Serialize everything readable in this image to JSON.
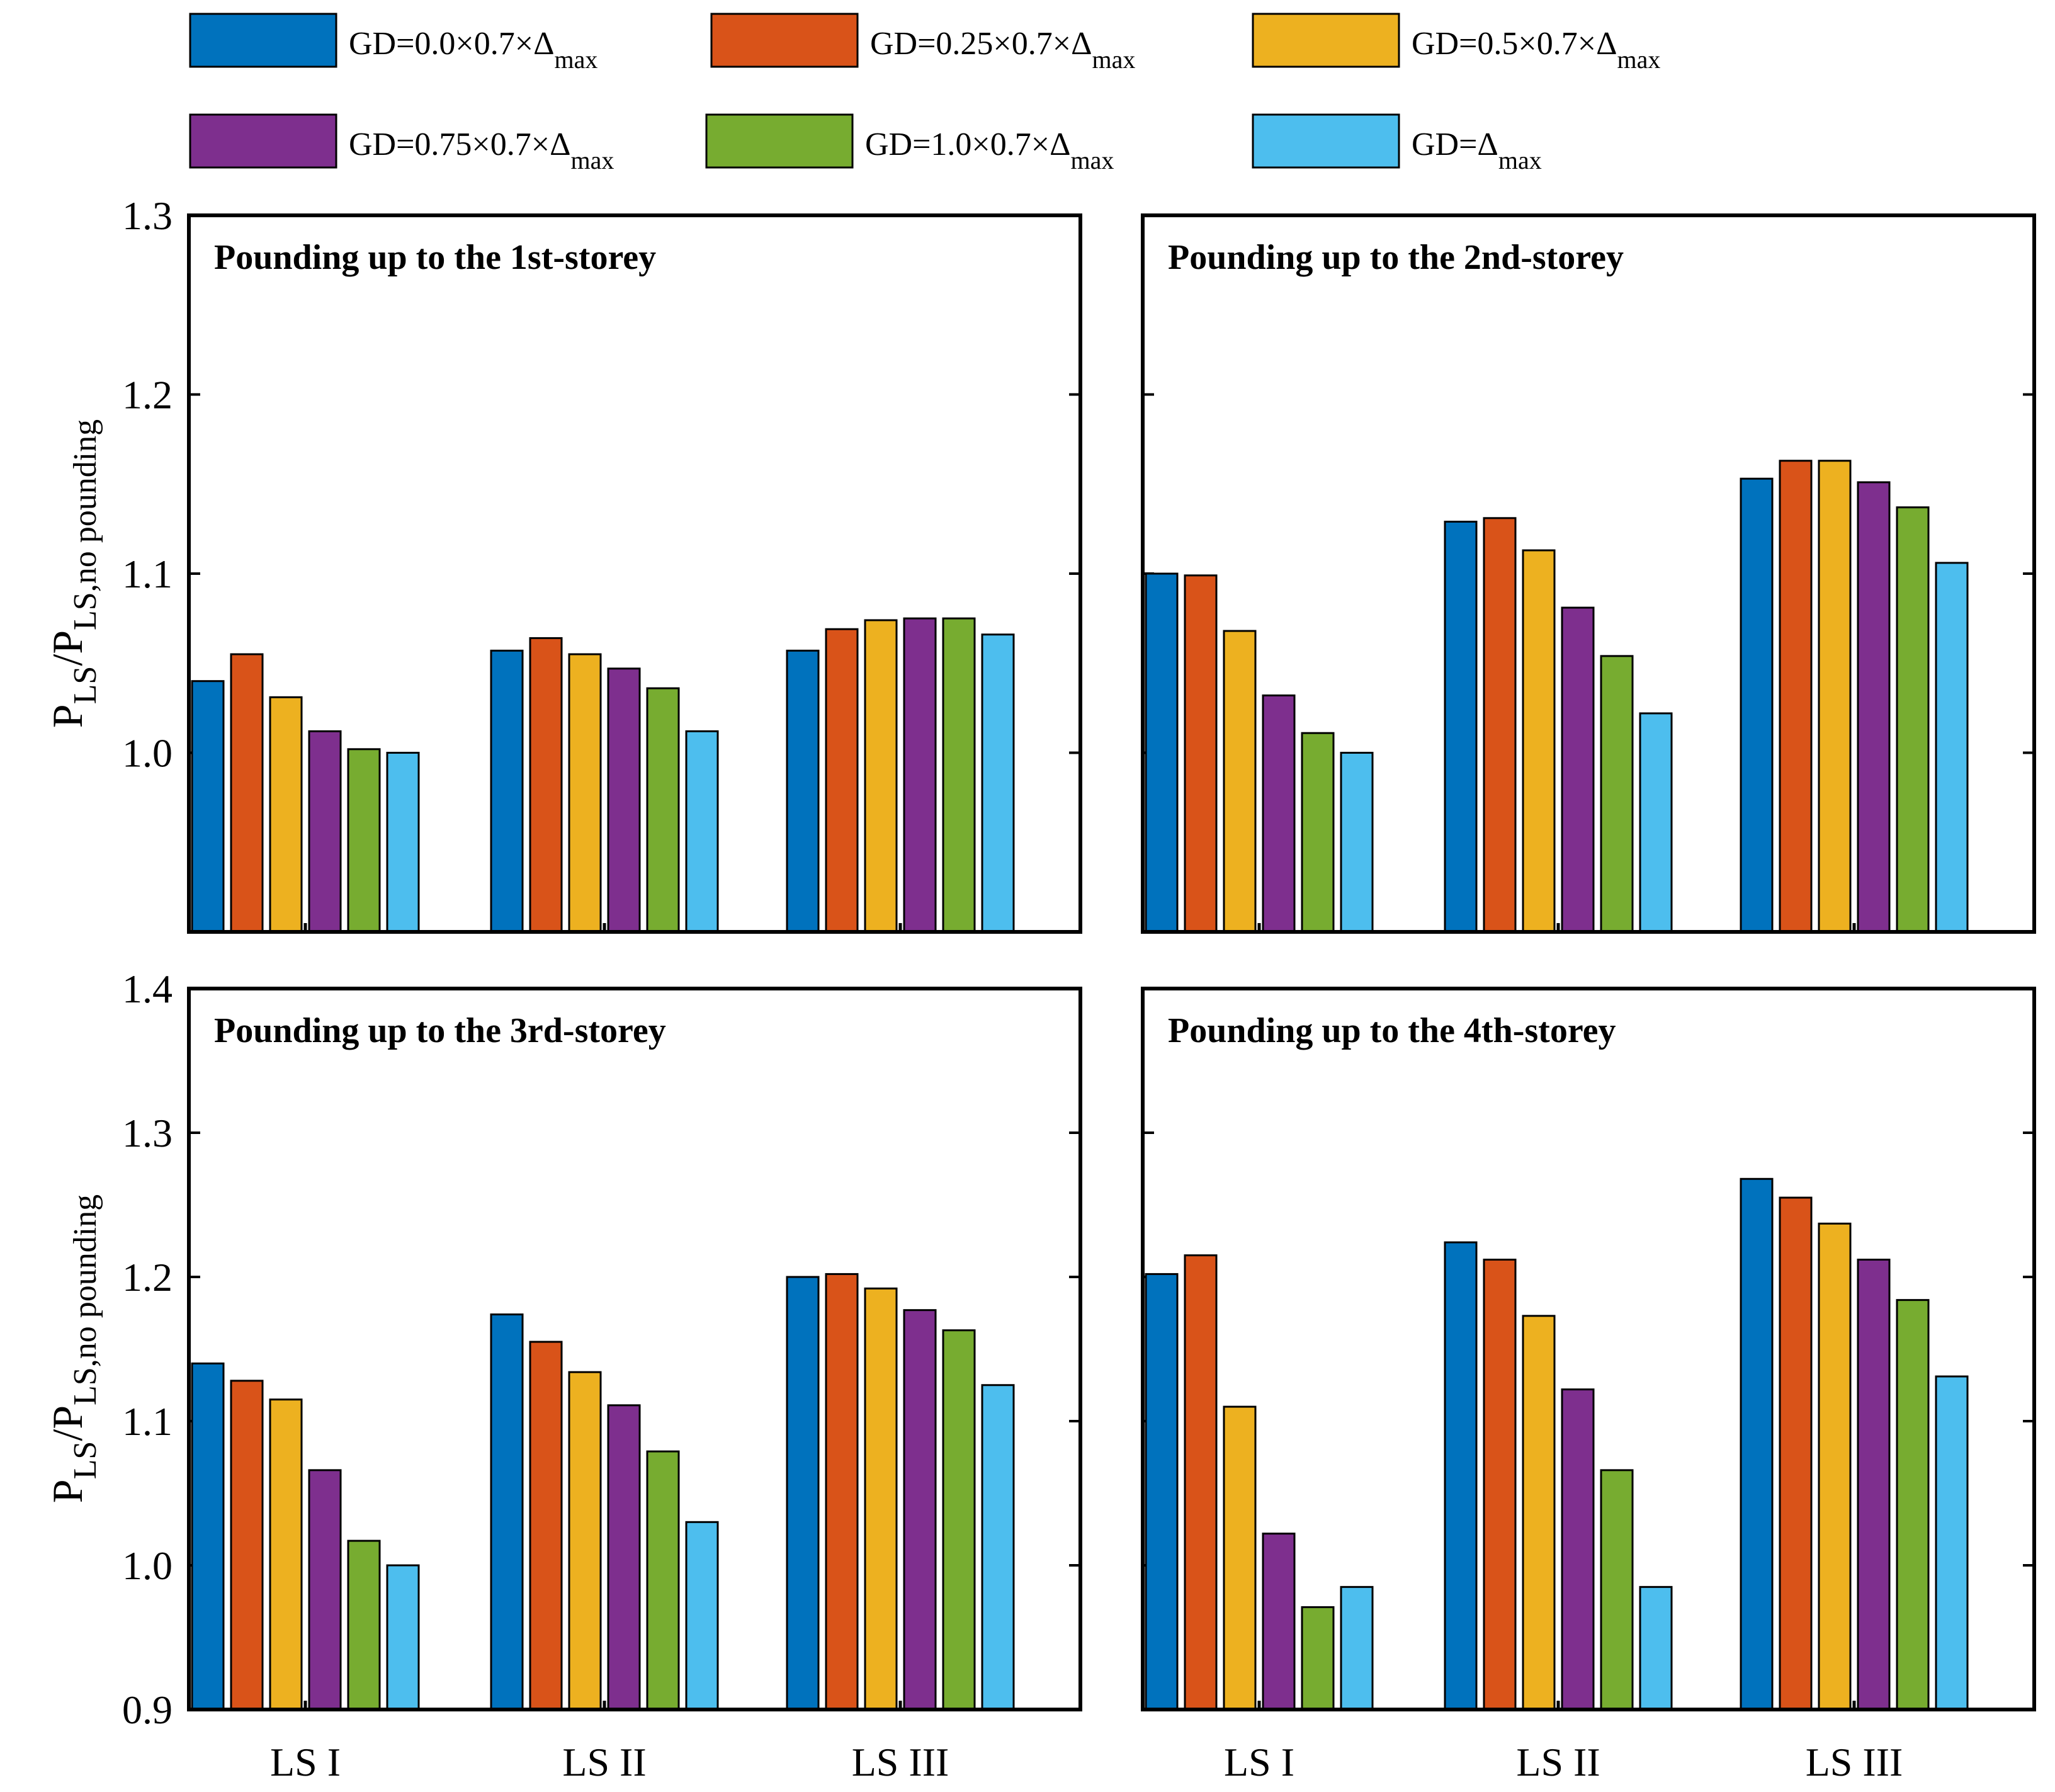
{
  "chart_data": {
    "type": "bar",
    "categories": [
      "LS I",
      "LS II",
      "LS III"
    ],
    "series_names": [
      {
        "base": "GD=0.0×0.7×Δ",
        "sub": "max"
      },
      {
        "base": "GD=0.25×0.7×Δ",
        "sub": "max"
      },
      {
        "base": "GD=0.5×0.7×Δ",
        "sub": "max"
      },
      {
        "base": "GD=0.75×0.7×Δ",
        "sub": "max"
      },
      {
        "base": "GD=1.0×0.7×Δ",
        "sub": "max"
      },
      {
        "base": "GD=Δ",
        "sub": "max"
      }
    ],
    "colors": [
      "#0072BD",
      "#D95319",
      "#EDB120",
      "#7E2F8E",
      "#77AC30",
      "#4DBEEE"
    ],
    "ylabel": {
      "p1": "P",
      "s1": "LS",
      "slash": "/P",
      "s2": "LS,no pounding"
    },
    "panels": [
      {
        "title": "Pounding up to the 1st-storey",
        "ylim": [
          0.9,
          1.3
        ],
        "yticks": [
          "1.0",
          "1.1",
          "1.2",
          "1.3"
        ],
        "series": [
          {
            "name": "GD=0.0×0.7×Δmax",
            "values": [
              1.04,
              1.057,
              1.057
            ]
          },
          {
            "name": "GD=0.25×0.7×Δmax",
            "values": [
              1.055,
              1.064,
              1.069
            ]
          },
          {
            "name": "GD=0.5×0.7×Δmax",
            "values": [
              1.031,
              1.055,
              1.074
            ]
          },
          {
            "name": "GD=0.75×0.7×Δmax",
            "values": [
              1.012,
              1.047,
              1.075
            ]
          },
          {
            "name": "GD=1.0×0.7×Δmax",
            "values": [
              1.002,
              1.036,
              1.075
            ]
          },
          {
            "name": "GD=Δmax",
            "values": [
              1.0,
              1.012,
              1.066
            ]
          }
        ]
      },
      {
        "title": "Pounding up to the 2nd-storey",
        "ylim": [
          0.9,
          1.3
        ],
        "yticks": [],
        "series": [
          {
            "name": "GD=0.0×0.7×Δmax",
            "values": [
              1.1,
              1.129,
              1.153
            ]
          },
          {
            "name": "GD=0.25×0.7×Δmax",
            "values": [
              1.099,
              1.131,
              1.163
            ]
          },
          {
            "name": "GD=0.5×0.7×Δmax",
            "values": [
              1.068,
              1.113,
              1.163
            ]
          },
          {
            "name": "GD=0.75×0.7×Δmax",
            "values": [
              1.032,
              1.081,
              1.151
            ]
          },
          {
            "name": "GD=1.0×0.7×Δmax",
            "values": [
              1.011,
              1.054,
              1.137
            ]
          },
          {
            "name": "GD=Δmax",
            "values": [
              1.0,
              1.022,
              1.106
            ]
          }
        ]
      },
      {
        "title": "Pounding up to the 3rd-storey",
        "ylim": [
          0.9,
          1.4
        ],
        "yticks": [
          "0.9",
          "1.0",
          "1.1",
          "1.2",
          "1.3",
          "1.4"
        ],
        "series": [
          {
            "name": "GD=0.0×0.7×Δmax",
            "values": [
              1.14,
              1.174,
              1.2
            ]
          },
          {
            "name": "GD=0.25×0.7×Δmax",
            "values": [
              1.128,
              1.155,
              1.202
            ]
          },
          {
            "name": "GD=0.5×0.7×Δmax",
            "values": [
              1.115,
              1.134,
              1.192
            ]
          },
          {
            "name": "GD=0.75×0.7×Δmax",
            "values": [
              1.066,
              1.111,
              1.177
            ]
          },
          {
            "name": "GD=1.0×0.7×Δmax",
            "values": [
              1.017,
              1.079,
              1.163
            ]
          },
          {
            "name": "GD=Δmax",
            "values": [
              1.0,
              1.03,
              1.125
            ]
          }
        ]
      },
      {
        "title": "Pounding up to the 4th-storey",
        "ylim": [
          0.9,
          1.4
        ],
        "yticks": [],
        "series": [
          {
            "name": "GD=0.0×0.7×Δmax",
            "values": [
              1.202,
              1.224,
              1.268
            ]
          },
          {
            "name": "GD=0.25×0.7×Δmax",
            "values": [
              1.215,
              1.212,
              1.255
            ]
          },
          {
            "name": "GD=0.5×0.7×Δmax",
            "values": [
              1.11,
              1.173,
              1.237
            ]
          },
          {
            "name": "GD=0.75×0.7×Δmax",
            "values": [
              1.022,
              1.122,
              1.212
            ]
          },
          {
            "name": "GD=1.0×0.7×Δmax",
            "values": [
              0.971,
              1.066,
              1.184
            ]
          },
          {
            "name": "GD=Δmax",
            "values": [
              0.985,
              0.985,
              1.131
            ]
          }
        ]
      }
    ]
  }
}
